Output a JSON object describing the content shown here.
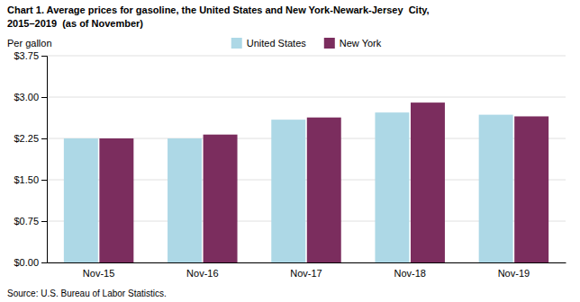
{
  "chart_data": {
    "type": "bar",
    "title": "Chart 1. Average prices for gasoline, the United States and New York-Newark-Jersey  City,",
    "subtitle": "2015–2019  (as of November)",
    "ylabel": "Per gallon",
    "source": "Source: U.S. Bureau of Labor Statistics.",
    "categories": [
      "Nov-15",
      "Nov-16",
      "Nov-17",
      "Nov-18",
      "Nov-19"
    ],
    "series": [
      {
        "name": "United States",
        "color": "#ADD8E6",
        "values": [
          2.25,
          2.25,
          2.59,
          2.72,
          2.68
        ]
      },
      {
        "name": "New York",
        "color": "#7B2D5E",
        "values": [
          2.25,
          2.32,
          2.63,
          2.9,
          2.65
        ]
      }
    ],
    "ylim": [
      0,
      3.75
    ],
    "yticks": [
      {
        "value": 0.0,
        "label": "$0.00"
      },
      {
        "value": 0.75,
        "label": "$0.75"
      },
      {
        "value": 1.5,
        "label": "$1.50"
      },
      {
        "value": 2.25,
        "label": "$2.25"
      },
      {
        "value": 3.0,
        "label": "$3.00"
      },
      {
        "value": 3.75,
        "label": "$3.75"
      }
    ],
    "grid": true,
    "legend": "top"
  }
}
